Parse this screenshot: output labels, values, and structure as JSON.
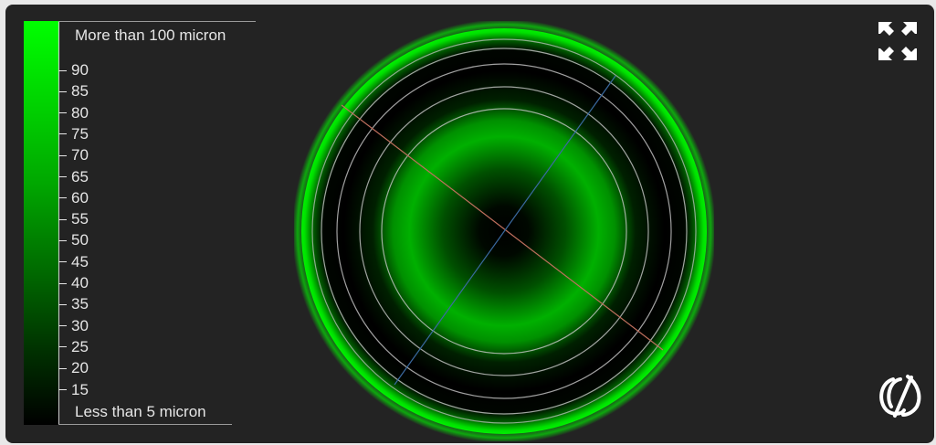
{
  "legend": {
    "top_label": "More than 100 micron",
    "bottom_label": "Less than 5 micron",
    "ticks": [
      "90",
      "85",
      "80",
      "75",
      "70",
      "65",
      "60",
      "55",
      "50",
      "45",
      "40",
      "35",
      "30",
      "25",
      "20",
      "15"
    ]
  },
  "colors": {
    "panel_background": "#232323",
    "page_background": "#e9e9e9",
    "scale_high": "#00ff00",
    "scale_low": "#000000",
    "ring_lines": "#c9c9c9",
    "meridian_red": "#c0705e",
    "meridian_blue": "#3a6aa0"
  },
  "icons": {
    "expand": "expand-arrows-icon",
    "logo": "eye-lens-logo-icon"
  }
}
